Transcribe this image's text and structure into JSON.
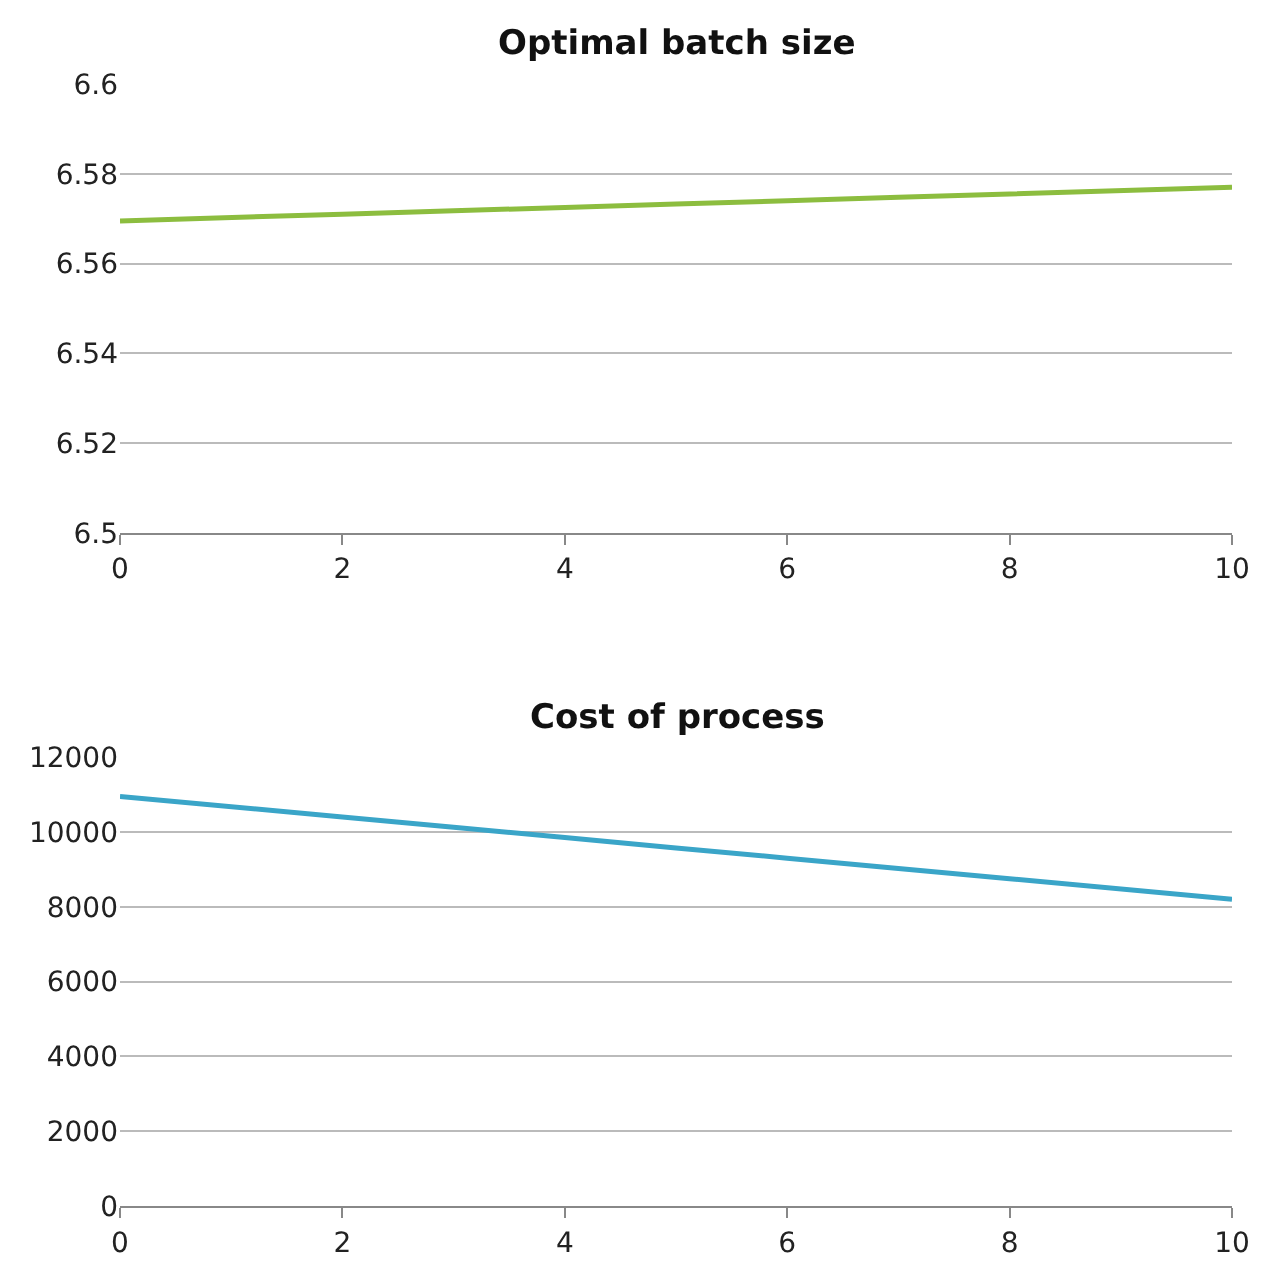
{
  "chart_data": [
    {
      "type": "line",
      "title": "Optimal batch size",
      "x": [
        0,
        2,
        4,
        6,
        8,
        10
      ],
      "series": [
        {
          "color": "#8cbd3f",
          "values": [
            6.5695,
            6.571,
            6.5725,
            6.574,
            6.5755,
            6.577
          ]
        }
      ],
      "xlim": [
        0,
        10
      ],
      "xticks": [
        0,
        2,
        4,
        6,
        8,
        10
      ],
      "ylim": [
        6.5,
        6.6
      ],
      "yticks": [
        6.5,
        6.52,
        6.54,
        6.56,
        6.58,
        6.6
      ],
      "grid": "y",
      "marker": "none"
    },
    {
      "type": "line",
      "title": "Cost of process",
      "x": [
        0,
        2,
        4,
        6,
        8,
        10
      ],
      "series": [
        {
          "color": "#3aa5c8",
          "values": [
            10950,
            10400,
            9850,
            9300,
            8750,
            8200
          ]
        }
      ],
      "xlim": [
        0,
        10
      ],
      "xticks": [
        0,
        2,
        4,
        6,
        8,
        10
      ],
      "ylim": [
        0,
        12000
      ],
      "yticks": [
        0,
        2000,
        4000,
        6000,
        8000,
        10000,
        12000
      ],
      "grid": "y",
      "marker": "none"
    }
  ]
}
